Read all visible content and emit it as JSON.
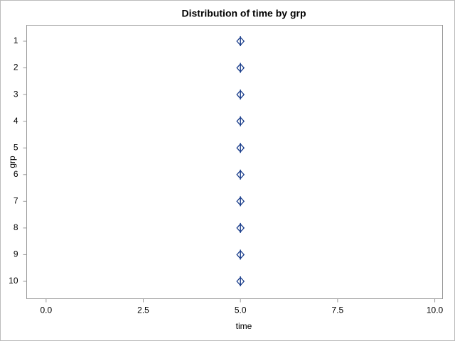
{
  "chart_data": {
    "type": "box",
    "title": "Distribution of time by grp",
    "x_label": "time",
    "y_label": "grp",
    "categories": [
      "1",
      "2",
      "3",
      "4",
      "5",
      "6",
      "7",
      "8",
      "9",
      "10"
    ],
    "medians": [
      5,
      5,
      5,
      5,
      5,
      5,
      5,
      5,
      5,
      5
    ],
    "means": [
      5,
      5,
      5,
      5,
      5,
      5,
      5,
      5,
      5,
      5
    ],
    "color": "#1c3f8c",
    "xlim": [
      -0.5,
      10.2
    ],
    "xticks": [
      {
        "value": 0,
        "label": "0.0"
      },
      {
        "value": 2.5,
        "label": "2.5"
      },
      {
        "value": 5,
        "label": "5.0"
      },
      {
        "value": 7.5,
        "label": "7.5"
      },
      {
        "value": 10,
        "label": "10.0"
      }
    ],
    "grid": false
  }
}
